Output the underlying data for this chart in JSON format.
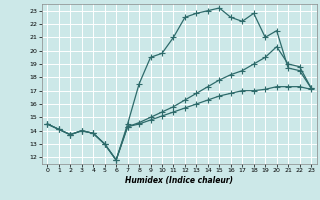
{
  "xlabel": "Humidex (Indice chaleur)",
  "bg_color": "#cce8e8",
  "grid_color": "#ffffff",
  "line_color": "#2e6b6b",
  "xlim": [
    -0.5,
    23.5
  ],
  "ylim": [
    11.5,
    23.5
  ],
  "xticks": [
    0,
    1,
    2,
    3,
    4,
    5,
    6,
    7,
    8,
    9,
    10,
    11,
    12,
    13,
    14,
    15,
    16,
    17,
    18,
    19,
    20,
    21,
    22,
    23
  ],
  "yticks": [
    12,
    13,
    14,
    15,
    16,
    17,
    18,
    19,
    20,
    21,
    22,
    23
  ],
  "line1_x": [
    0,
    1,
    2,
    3,
    4,
    5,
    6,
    7,
    8,
    9,
    10,
    11,
    12,
    13,
    14,
    15,
    16,
    17,
    18,
    19,
    20,
    21,
    22,
    23
  ],
  "line1_y": [
    14.5,
    14.1,
    13.7,
    14.0,
    13.8,
    13.0,
    11.8,
    14.5,
    17.5,
    19.5,
    19.8,
    21.0,
    22.5,
    22.8,
    23.0,
    23.2,
    22.5,
    22.2,
    22.8,
    21.0,
    21.5,
    18.7,
    18.5,
    17.2
  ],
  "line2_x": [
    0,
    1,
    2,
    3,
    4,
    5,
    6,
    7,
    8,
    9,
    10,
    11,
    12,
    13,
    14,
    15,
    16,
    17,
    18,
    19,
    20,
    21,
    22,
    23
  ],
  "line2_y": [
    14.5,
    14.1,
    13.7,
    14.0,
    13.8,
    13.0,
    11.8,
    14.3,
    14.6,
    15.0,
    15.4,
    15.8,
    16.3,
    16.8,
    17.3,
    17.8,
    18.2,
    18.5,
    19.0,
    19.5,
    20.3,
    19.0,
    18.8,
    17.2
  ],
  "line3_x": [
    0,
    1,
    2,
    3,
    4,
    5,
    6,
    7,
    8,
    9,
    10,
    11,
    12,
    13,
    14,
    15,
    16,
    17,
    18,
    19,
    20,
    21,
    22,
    23
  ],
  "line3_y": [
    14.5,
    14.1,
    13.7,
    14.0,
    13.8,
    13.0,
    11.8,
    14.3,
    14.5,
    14.8,
    15.1,
    15.4,
    15.7,
    16.0,
    16.3,
    16.6,
    16.8,
    17.0,
    17.0,
    17.1,
    17.3,
    17.3,
    17.3,
    17.1
  ]
}
